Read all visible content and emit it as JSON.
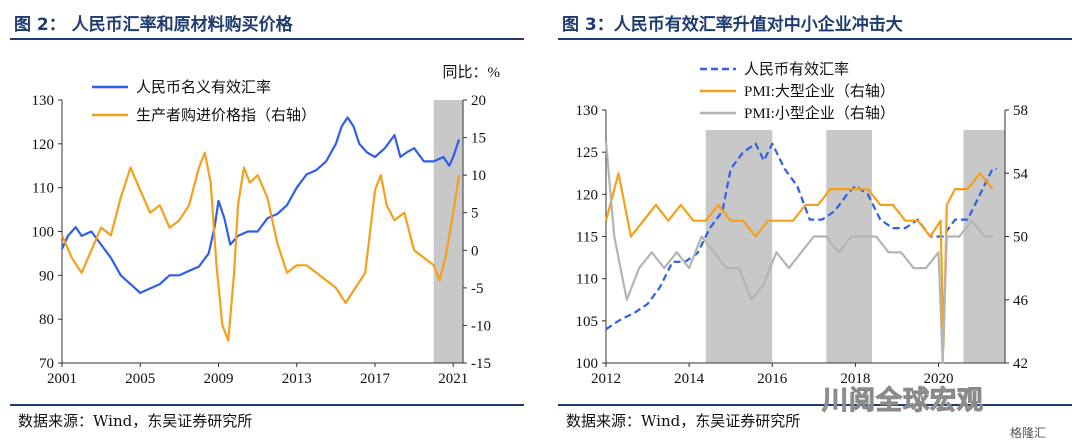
{
  "left": {
    "title": "图 2： 人民币汇率和原材料购买价格",
    "source": "数据来源：Wind，东吴证券研究所",
    "unit_label": "同比：%",
    "colors": {
      "rmb": "#2f5fe8",
      "ppi": "#f5a01a",
      "shade": "#c8c8c8"
    },
    "chart_data": {
      "type": "line",
      "title": "人民币汇率和原材料购买价格",
      "x_ticks": [
        "2001",
        "2005",
        "2009",
        "2013",
        "2017",
        "2021"
      ],
      "x_range": [
        2001,
        2021.5
      ],
      "y_left": {
        "range": [
          70,
          130
        ],
        "ticks": [
          70,
          80,
          90,
          100,
          110,
          120,
          130
        ]
      },
      "y_right": {
        "label": "同比：%",
        "range": [
          -15,
          20
        ],
        "ticks": [
          -15,
          -10,
          -5,
          0,
          5,
          10,
          15,
          20
        ]
      },
      "shaded_periods": [
        [
          2020.0,
          2021.5
        ]
      ],
      "series": [
        {
          "name": "人民币名义有效汇率",
          "axis": "left",
          "x": [
            2001,
            2001.3,
            2001.7,
            2002,
            2002.5,
            2003,
            2003.5,
            2004,
            2004.5,
            2005,
            2005.5,
            2006,
            2006.5,
            2007,
            2007.5,
            2008,
            2008.5,
            2008.8,
            2009,
            2009.3,
            2009.6,
            2010,
            2010.5,
            2011,
            2011.5,
            2012,
            2012.5,
            2013,
            2013.5,
            2014,
            2014.5,
            2015,
            2015.3,
            2015.6,
            2015.9,
            2016.2,
            2016.6,
            2017,
            2017.5,
            2018,
            2018.3,
            2018.6,
            2019,
            2019.5,
            2020,
            2020.5,
            2020.8,
            2021,
            2021.3
          ],
          "values": [
            96,
            99,
            101,
            99,
            100,
            97,
            94,
            90,
            88,
            86,
            87,
            88,
            90,
            90,
            91,
            92,
            95,
            101,
            107,
            103,
            97,
            99,
            100,
            100,
            103,
            104,
            106,
            110,
            113,
            114,
            116,
            120,
            124,
            126,
            124,
            120,
            118,
            117,
            119,
            122,
            117,
            118,
            119,
            116,
            116,
            117,
            115,
            117,
            121
          ]
        },
        {
          "name": "生产者购进价格指（右轴）",
          "axis": "right",
          "x": [
            2001,
            2001.5,
            2002,
            2002.5,
            2003,
            2003.5,
            2004,
            2004.5,
            2005,
            2005.5,
            2006,
            2006.5,
            2007,
            2007.5,
            2008,
            2008.3,
            2008.6,
            2008.9,
            2009.2,
            2009.5,
            2009.8,
            2010,
            2010.3,
            2010.6,
            2011,
            2011.5,
            2012,
            2012.5,
            2013,
            2013.5,
            2014,
            2014.5,
            2015,
            2015.5,
            2016,
            2016.5,
            2017,
            2017.3,
            2017.6,
            2018,
            2018.5,
            2019,
            2019.5,
            2020,
            2020.3,
            2020.6,
            2021,
            2021.3
          ],
          "values": [
            2,
            -1,
            -3,
            0,
            3,
            2,
            7,
            11,
            8,
            5,
            6,
            3,
            4,
            6,
            11,
            13,
            9,
            -2,
            -10,
            -12,
            -3,
            6,
            11,
            9,
            10,
            7,
            1,
            -3,
            -2,
            -2,
            -3,
            -4,
            -5,
            -7,
            -5,
            -3,
            8,
            10,
            6,
            4,
            5,
            0,
            -1,
            -2,
            -4,
            -1,
            5,
            10
          ]
        }
      ]
    }
  },
  "right": {
    "title": "图 3：人民币有效汇率升值对中小企业冲击大",
    "source": "数据来源：Wind，东吴证券研究所",
    "colors": {
      "rmb": "#2f5fe8",
      "large": "#f5a01a",
      "small": "#b4b4b4",
      "shade": "#c8c8c8"
    },
    "chart_data": {
      "type": "line",
      "title": "人民币有效汇率升值对中小企业冲击大",
      "x_ticks": [
        "2012",
        "2014",
        "2016",
        "2018",
        "2020"
      ],
      "x_range": [
        2012,
        2021.6
      ],
      "y_left": {
        "range": [
          100,
          130
        ],
        "ticks": [
          100,
          105,
          110,
          115,
          120,
          125,
          130
        ]
      },
      "y_right": {
        "range": [
          42,
          58
        ],
        "ticks": [
          42,
          46,
          50,
          54,
          58
        ]
      },
      "shaded_periods": [
        [
          2014.4,
          2016.0
        ],
        [
          2017.3,
          2018.4
        ],
        [
          2020.6,
          2021.6
        ]
      ],
      "series": [
        {
          "name": "人民币有效汇率",
          "axis": "left",
          "style": "dashed",
          "x": [
            2012,
            2012.3,
            2012.7,
            2013,
            2013.3,
            2013.6,
            2013.9,
            2014.2,
            2014.5,
            2014.8,
            2015.0,
            2015.3,
            2015.6,
            2015.8,
            2016.0,
            2016.3,
            2016.6,
            2016.9,
            2017.2,
            2017.5,
            2017.8,
            2018.0,
            2018.3,
            2018.6,
            2018.9,
            2019.2,
            2019.5,
            2019.8,
            2020.1,
            2020.4,
            2020.7,
            2021.0,
            2021.3,
            2021.4
          ],
          "values": [
            104,
            105,
            106,
            107,
            109,
            112,
            112,
            113,
            116,
            118,
            123,
            125,
            126,
            124,
            126,
            123,
            121,
            117,
            117,
            118,
            120,
            121,
            120,
            117,
            116,
            116,
            117,
            115,
            115,
            117,
            117,
            120,
            123,
            123
          ]
        },
        {
          "name": "PMI:大型企业（右轴）",
          "axis": "right",
          "x": [
            2012,
            2012.3,
            2012.6,
            2012.9,
            2013.2,
            2013.5,
            2013.8,
            2014.1,
            2014.4,
            2014.7,
            2015.0,
            2015.3,
            2015.6,
            2015.9,
            2016.2,
            2016.5,
            2016.8,
            2017.1,
            2017.4,
            2017.7,
            2018.0,
            2018.3,
            2018.6,
            2018.9,
            2019.2,
            2019.5,
            2019.8,
            2020.05,
            2020.12,
            2020.2,
            2020.4,
            2020.7,
            2021.0,
            2021.3
          ],
          "values": [
            51,
            54,
            50,
            51,
            52,
            51,
            52,
            51,
            51,
            52,
            51,
            51,
            50,
            51,
            51,
            51,
            52,
            52,
            53,
            53,
            53,
            53,
            52,
            52,
            51,
            51,
            50,
            51,
            43,
            52,
            53,
            53,
            54,
            53
          ]
        },
        {
          "name": "PMI:小型企业（右轴）",
          "axis": "right",
          "x": [
            2012,
            2012.2,
            2012.5,
            2012.8,
            2013.1,
            2013.4,
            2013.7,
            2014.0,
            2014.3,
            2014.6,
            2014.9,
            2015.2,
            2015.5,
            2015.8,
            2016.1,
            2016.4,
            2016.7,
            2017.0,
            2017.3,
            2017.6,
            2017.9,
            2018.2,
            2018.5,
            2018.8,
            2019.1,
            2019.4,
            2019.7,
            2020.0,
            2020.1,
            2020.2,
            2020.5,
            2020.8,
            2021.1,
            2021.3
          ],
          "values": [
            56,
            50,
            46,
            48,
            49,
            48,
            49,
            48,
            50,
            49,
            48,
            48,
            46,
            47,
            49,
            48,
            49,
            50,
            50,
            49,
            50,
            50,
            50,
            49,
            49,
            48,
            48,
            49,
            42,
            50,
            50,
            51,
            50,
            50
          ]
        }
      ]
    }
  },
  "watermark": "川阅全球宏观",
  "corner_logo": "格隆汇"
}
